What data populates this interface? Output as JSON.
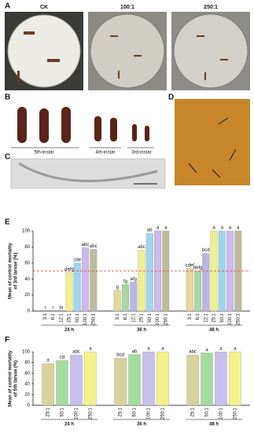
{
  "panels": {
    "A": {
      "letter": "A",
      "labels": [
        "CK",
        "100:1",
        "250:1"
      ]
    },
    "B": {
      "letter": "B",
      "labels": [
        "5th-instar",
        "4th-instar",
        "3rd-instar"
      ]
    },
    "C": {
      "letter": "C"
    },
    "D": {
      "letter": "D"
    }
  },
  "chart_data": [
    {
      "panel": "E",
      "type": "bar",
      "ylabel": [
        "Mean of control mortality",
        "of 3rd larvae (%)"
      ],
      "categories": [
        "24 h",
        "36 h",
        "48 h"
      ],
      "series": [
        {
          "name": "3:1",
          "color": "#e6d89a",
          "values": [
            0,
            26,
            53
          ],
          "letters": [
            "i",
            "g",
            "cdef"
          ]
        },
        {
          "name": "6:1",
          "color": "#a9d6a3",
          "values": [
            0,
            33,
            50
          ],
          "letters": [
            "i",
            "fg",
            "defg"
          ]
        },
        {
          "name": "12:1",
          "color": "#b9b6e3",
          "values": [
            0,
            36,
            72
          ],
          "letters": [
            "hi",
            "efg",
            "bcd"
          ]
        },
        {
          "name": "25:1",
          "color": "#eef08e",
          "values": [
            48,
            76,
            100
          ],
          "letters": [
            "defg",
            "abc",
            "a"
          ]
        },
        {
          "name": "50:1",
          "color": "#9fd6ec",
          "values": [
            60,
            97,
            100
          ],
          "letters": [
            "cde",
            "ab",
            "a"
          ]
        },
        {
          "name": "100:1",
          "color": "#cdb9ef",
          "values": [
            79,
            100,
            100
          ],
          "letters": [
            "abc",
            "a",
            "a"
          ]
        },
        {
          "name": "250:1",
          "color": "#bdbd9c",
          "values": [
            77,
            100,
            100
          ],
          "letters": [
            "abc",
            "a",
            "a"
          ]
        }
      ],
      "ylim": [
        0,
        100
      ],
      "yticks": [
        0,
        20,
        40,
        60,
        80,
        100
      ],
      "reference_line": 50,
      "reference_color": "#e03030"
    },
    {
      "panel": "F",
      "type": "bar",
      "ylabel": [
        "Mean of control mortality",
        "of 5th larvae (%)"
      ],
      "categories": [
        "24 h",
        "36 h",
        "48 h"
      ],
      "series": [
        {
          "name": "25:1",
          "color": "#d9d29c",
          "values": [
            78,
            88,
            94
          ],
          "letters": [
            "d",
            "bcd",
            "abc"
          ]
        },
        {
          "name": "50:1",
          "color": "#a4dca0",
          "values": [
            84,
            95,
            98
          ],
          "letters": [
            "cd",
            "ab",
            "a"
          ]
        },
        {
          "name": "100:1",
          "color": "#c6c0ea",
          "values": [
            94,
            100,
            100
          ],
          "letters": [
            "abc",
            "a",
            "a"
          ]
        },
        {
          "name": "250:1",
          "color": "#f2f28a",
          "values": [
            100,
            100,
            100
          ],
          "letters": [
            "a",
            "a",
            "a"
          ]
        }
      ],
      "ylim": [
        0,
        100
      ],
      "yticks": [
        0,
        20,
        40,
        60,
        80,
        100
      ]
    }
  ]
}
